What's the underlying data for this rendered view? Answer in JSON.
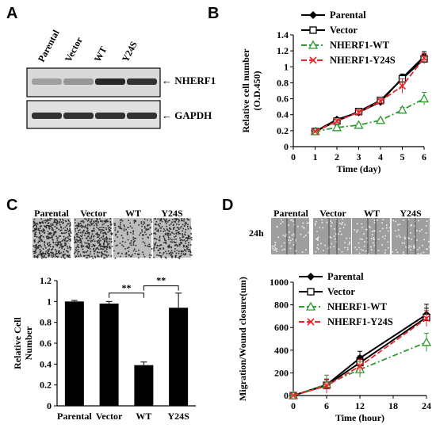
{
  "panels": {
    "A": {
      "letter": "A",
      "lanes": [
        "Parental",
        "Vector",
        "WT",
        "Y24S"
      ],
      "bands": [
        {
          "label": "NHERF1",
          "arrow": "←",
          "intensity": [
            0.35,
            0.4,
            0.95,
            0.9
          ]
        },
        {
          "label": "GAPDH",
          "arrow": "←",
          "intensity": [
            0.9,
            0.9,
            0.9,
            0.9
          ]
        }
      ]
    },
    "C": {
      "letter": "C",
      "image_labels": [
        "Parental",
        "Vector",
        "WT",
        "Y24S"
      ]
    },
    "D": {
      "letter": "D",
      "image_labels": [
        "Parental",
        "Vector",
        "WT",
        "Y24S"
      ],
      "row_label": "24h"
    },
    "B": {
      "letter": "B"
    }
  },
  "colors": {
    "parental": "#000000",
    "vector": "#000000",
    "wt": "#2e9a2e",
    "y24s": "#e8262b",
    "bar": "#000000"
  },
  "chart_data": [
    {
      "id": "B",
      "type": "line",
      "xlabel": "Time (day)",
      "ylabel": "Relative cell number (O.D.450)",
      "xlim": [
        0,
        6
      ],
      "ylim": [
        0,
        1.4
      ],
      "xticks": [
        0,
        1,
        2,
        3,
        4,
        5,
        6
      ],
      "yticks": [
        0,
        0.2,
        0.4,
        0.6,
        0.8,
        1,
        1.2,
        1.4
      ],
      "x": [
        1,
        2,
        3,
        4,
        5,
        6
      ],
      "legend": "top-left",
      "series": [
        {
          "name": "Parental",
          "values": [
            0.19,
            0.34,
            0.43,
            0.56,
            0.86,
            1.13
          ],
          "err": [
            0.01,
            0.02,
            0.03,
            0.03,
            0.05,
            0.06
          ]
        },
        {
          "name": "Vector",
          "values": [
            0.19,
            0.32,
            0.44,
            0.58,
            0.85,
            1.1
          ],
          "err": [
            0.01,
            0.02,
            0.03,
            0.03,
            0.05,
            0.06
          ]
        },
        {
          "name": "NHERF1-WT",
          "values": [
            0.19,
            0.24,
            0.27,
            0.33,
            0.46,
            0.6
          ],
          "err": [
            0.01,
            0.02,
            0.02,
            0.02,
            0.03,
            0.08
          ]
        },
        {
          "name": "NHERF1-Y24S",
          "values": [
            0.19,
            0.32,
            0.43,
            0.57,
            0.76,
            1.11
          ],
          "err": [
            0.01,
            0.02,
            0.03,
            0.03,
            0.09,
            0.06
          ]
        }
      ]
    },
    {
      "id": "C",
      "type": "bar",
      "ylabel": "Relative Cell Number",
      "categories": [
        "Parental",
        "Vector",
        "WT",
        "Y24S"
      ],
      "values": [
        1.0,
        0.98,
        0.39,
        0.94
      ],
      "err": [
        0.01,
        0.02,
        0.03,
        0.14
      ],
      "ylim": [
        0,
        1.2
      ],
      "yticks": [
        0,
        0.2,
        0.4,
        0.6,
        0.8,
        1,
        1.2
      ],
      "annotations": [
        {
          "text": "**",
          "from": "Vector",
          "to": "WT"
        },
        {
          "text": "**",
          "from": "WT",
          "to": "Y24S"
        }
      ]
    },
    {
      "id": "D",
      "type": "line",
      "xlabel": "Time (hour)",
      "ylabel": "Migration/Wound closure(um)",
      "xlim": [
        0,
        24
      ],
      "ylim": [
        0,
        1000
      ],
      "xticks": [
        0,
        6,
        12,
        18,
        24
      ],
      "yticks": [
        0,
        200,
        400,
        600,
        800,
        1000
      ],
      "x": [
        0,
        6,
        12,
        24
      ],
      "legend": "top-left",
      "series": [
        {
          "name": "Parental",
          "values": [
            0,
            95,
            330,
            715
          ],
          "err": [
            0,
            50,
            60,
            90
          ]
        },
        {
          "name": "Vector",
          "values": [
            0,
            90,
            290,
            690
          ],
          "err": [
            0,
            50,
            60,
            80
          ]
        },
        {
          "name": "NHERF1-WT",
          "values": [
            0,
            100,
            230,
            470
          ],
          "err": [
            0,
            80,
            70,
            80
          ]
        },
        {
          "name": "NHERF1-Y24S",
          "values": [
            0,
            85,
            260,
            680
          ],
          "err": [
            0,
            60,
            60,
            70
          ]
        }
      ]
    }
  ]
}
